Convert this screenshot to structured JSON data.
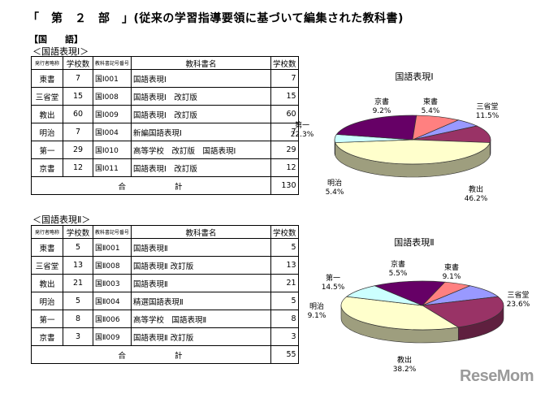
{
  "heading": "「　第　２　部　」(従来の学習指導要領に基づいて編集された教科書)",
  "subject_label": "【国　　語】",
  "tables": [
    {
      "caption": "＜国語表現Ⅰ＞",
      "headers": [
        "発行者略称",
        "学校数",
        "教科書記号番号",
        "教科書名",
        "学校数"
      ],
      "rows": [
        [
          "東書",
          "7",
          "国Ⅰ001",
          "国語表現Ⅰ",
          "7"
        ],
        [
          "三省堂",
          "15",
          "国Ⅰ008",
          "国語表現Ⅰ　改訂版",
          "15"
        ],
        [
          "教出",
          "60",
          "国Ⅰ009",
          "国語表現Ⅰ　改訂版",
          "60"
        ],
        [
          "明治",
          "7",
          "国Ⅰ004",
          "新編国語表現Ⅰ",
          "7"
        ],
        [
          "第一",
          "29",
          "国Ⅰ010",
          "高等学校　改訂版　国語表現Ⅰ",
          "29"
        ],
        [
          "京書",
          "12",
          "国Ⅰ011",
          "国語表現Ⅰ　改訂版",
          "12"
        ]
      ],
      "total_label": "合計",
      "total_value": "130"
    },
    {
      "caption": "＜国語表現Ⅱ＞",
      "headers": [
        "発行者略称",
        "学校数",
        "教科書記号番号",
        "教科書名",
        "学校数"
      ],
      "rows": [
        [
          "東書",
          "5",
          "国Ⅱ001",
          "国語表現Ⅱ",
          "5"
        ],
        [
          "三省堂",
          "13",
          "国Ⅱ008",
          "国語表現Ⅱ 改訂版",
          "13"
        ],
        [
          "教出",
          "21",
          "国Ⅱ003",
          "国語表現Ⅱ",
          "21"
        ],
        [
          "明治",
          "5",
          "国Ⅱ004",
          "精選国語表現Ⅱ",
          "5"
        ],
        [
          "第一",
          "8",
          "国Ⅱ006",
          "高等学校　国語表現Ⅱ",
          "8"
        ],
        [
          "京書",
          "3",
          "国Ⅱ009",
          "国語表現Ⅱ 改訂版",
          "3"
        ]
      ],
      "total_label": "合計",
      "total_value": "55"
    }
  ],
  "chart_data": [
    {
      "type": "pie",
      "title": "国語表現Ⅰ",
      "slices": [
        {
          "label": "東書",
          "value": 5.4,
          "text": "5.4%",
          "color": "#9999ff"
        },
        {
          "label": "三省堂",
          "value": 11.5,
          "text": "11.5%",
          "color": "#993366"
        },
        {
          "label": "教出",
          "value": 46.2,
          "text": "46.2%",
          "color": "#ffffcc"
        },
        {
          "label": "明治",
          "value": 5.4,
          "text": "5.4%",
          "color": "#ccffff"
        },
        {
          "label": "第一",
          "value": 22.3,
          "text": "22.3%",
          "color": "#660066"
        },
        {
          "label": "京書",
          "value": 9.2,
          "text": "9.2%",
          "color": "#ff8080"
        }
      ]
    },
    {
      "type": "pie",
      "title": "国語表現Ⅱ",
      "slices": [
        {
          "label": "東書",
          "value": 9.1,
          "text": "9.1%",
          "color": "#9999ff"
        },
        {
          "label": "三省堂",
          "value": 23.6,
          "text": "23.6%",
          "color": "#993366"
        },
        {
          "label": "教出",
          "value": 38.2,
          "text": "38.2%",
          "color": "#ffffcc"
        },
        {
          "label": "明治",
          "value": 9.1,
          "text": "9.1%",
          "color": "#ccffff"
        },
        {
          "label": "第一",
          "value": 14.5,
          "text": "14.5%",
          "color": "#660066"
        },
        {
          "label": "京書",
          "value": 5.5,
          "text": "5.5%",
          "color": "#ff8080"
        }
      ]
    }
  ],
  "brand": "ReseMom"
}
